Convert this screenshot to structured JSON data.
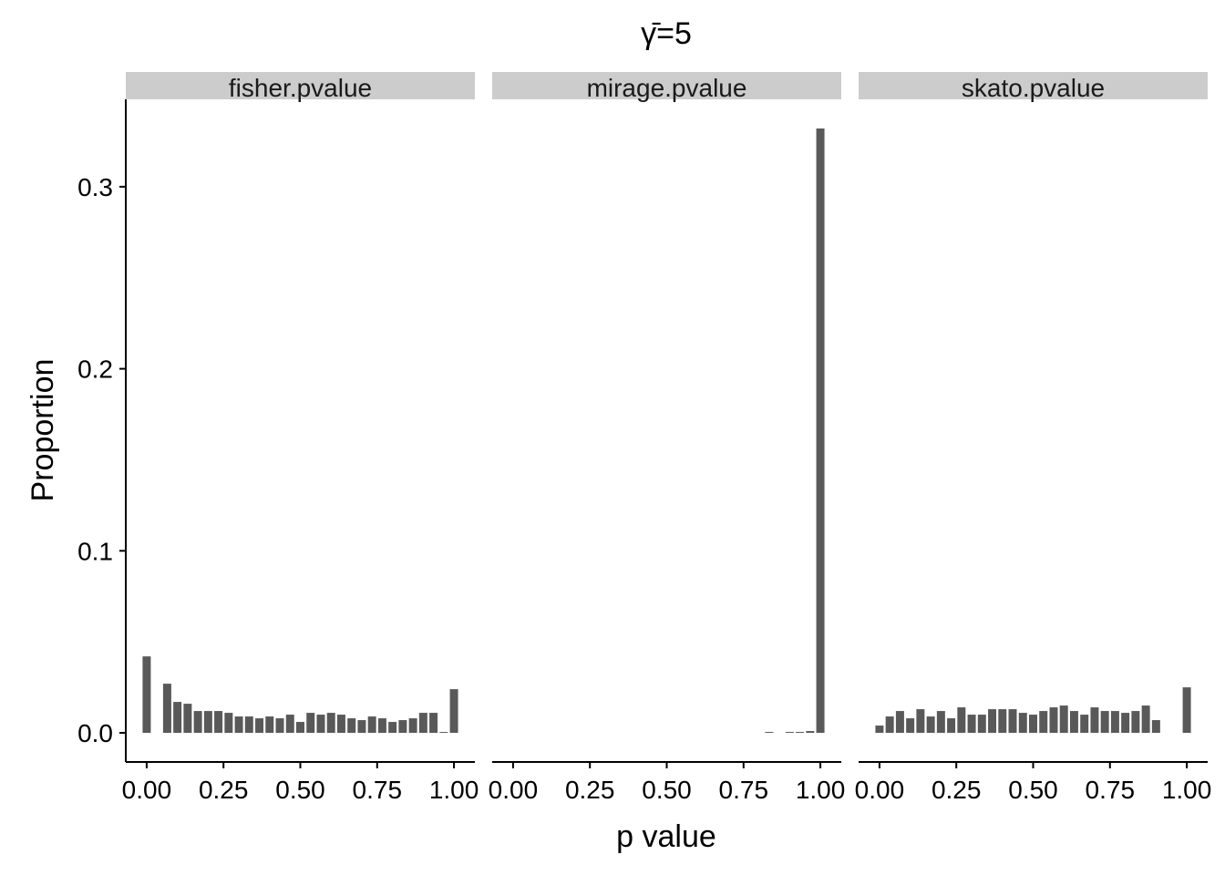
{
  "chart_data": {
    "type": "bar",
    "title": "γ̄=5",
    "xlabel": "p value",
    "ylabel": "Proportion",
    "ylim": [
      -0.016,
      0.348
    ],
    "xlim": [
      -0.068,
      1.068
    ],
    "y_ticks": [
      0.0,
      0.1,
      0.2,
      0.3
    ],
    "y_tick_labels": [
      "0.0",
      "0.1",
      "0.2",
      "0.3"
    ],
    "x_ticks": [
      0.0,
      0.25,
      0.5,
      0.75,
      1.0
    ],
    "x_tick_labels": [
      "0.00",
      "0.25",
      "0.50",
      "0.75",
      "1.00"
    ],
    "bin_centers": [
      0.0,
      0.0333,
      0.0667,
      0.1,
      0.1333,
      0.1667,
      0.2,
      0.2333,
      0.2667,
      0.3,
      0.3333,
      0.3667,
      0.4,
      0.4333,
      0.4667,
      0.5,
      0.5333,
      0.5667,
      0.6,
      0.6333,
      0.6667,
      0.7,
      0.7333,
      0.7667,
      0.8,
      0.8333,
      0.8667,
      0.9,
      0.9333,
      0.9667,
      1.0
    ],
    "panels": [
      {
        "name": "fisher.pvalue",
        "values": [
          0.042,
          0.0,
          0.027,
          0.017,
          0.016,
          0.012,
          0.012,
          0.012,
          0.011,
          0.009,
          0.009,
          0.008,
          0.009,
          0.008,
          0.01,
          0.006,
          0.011,
          0.01,
          0.011,
          0.01,
          0.008,
          0.007,
          0.009,
          0.008,
          0.006,
          0.007,
          0.008,
          0.011,
          0.011,
          0.0005,
          0.024
        ]
      },
      {
        "name": "mirage.pvalue",
        "values": [
          0,
          0,
          0,
          0,
          0,
          0,
          0,
          0,
          0,
          0,
          0,
          0,
          0,
          0,
          0,
          0,
          0,
          0,
          0,
          0,
          0,
          0,
          0,
          0,
          0,
          0.0005,
          0,
          0.0005,
          0.0005,
          0.001,
          0.332
        ]
      },
      {
        "name": "skato.pvalue",
        "values": [
          0.004,
          0.009,
          0.012,
          0.008,
          0.013,
          0.009,
          0.012,
          0.008,
          0.014,
          0.01,
          0.01,
          0.013,
          0.013,
          0.013,
          0.011,
          0.01,
          0.012,
          0.014,
          0.015,
          0.012,
          0.01,
          0.014,
          0.012,
          0.012,
          0.011,
          0.012,
          0.015,
          0.007,
          0.0,
          0.0,
          0.025
        ]
      }
    ]
  }
}
